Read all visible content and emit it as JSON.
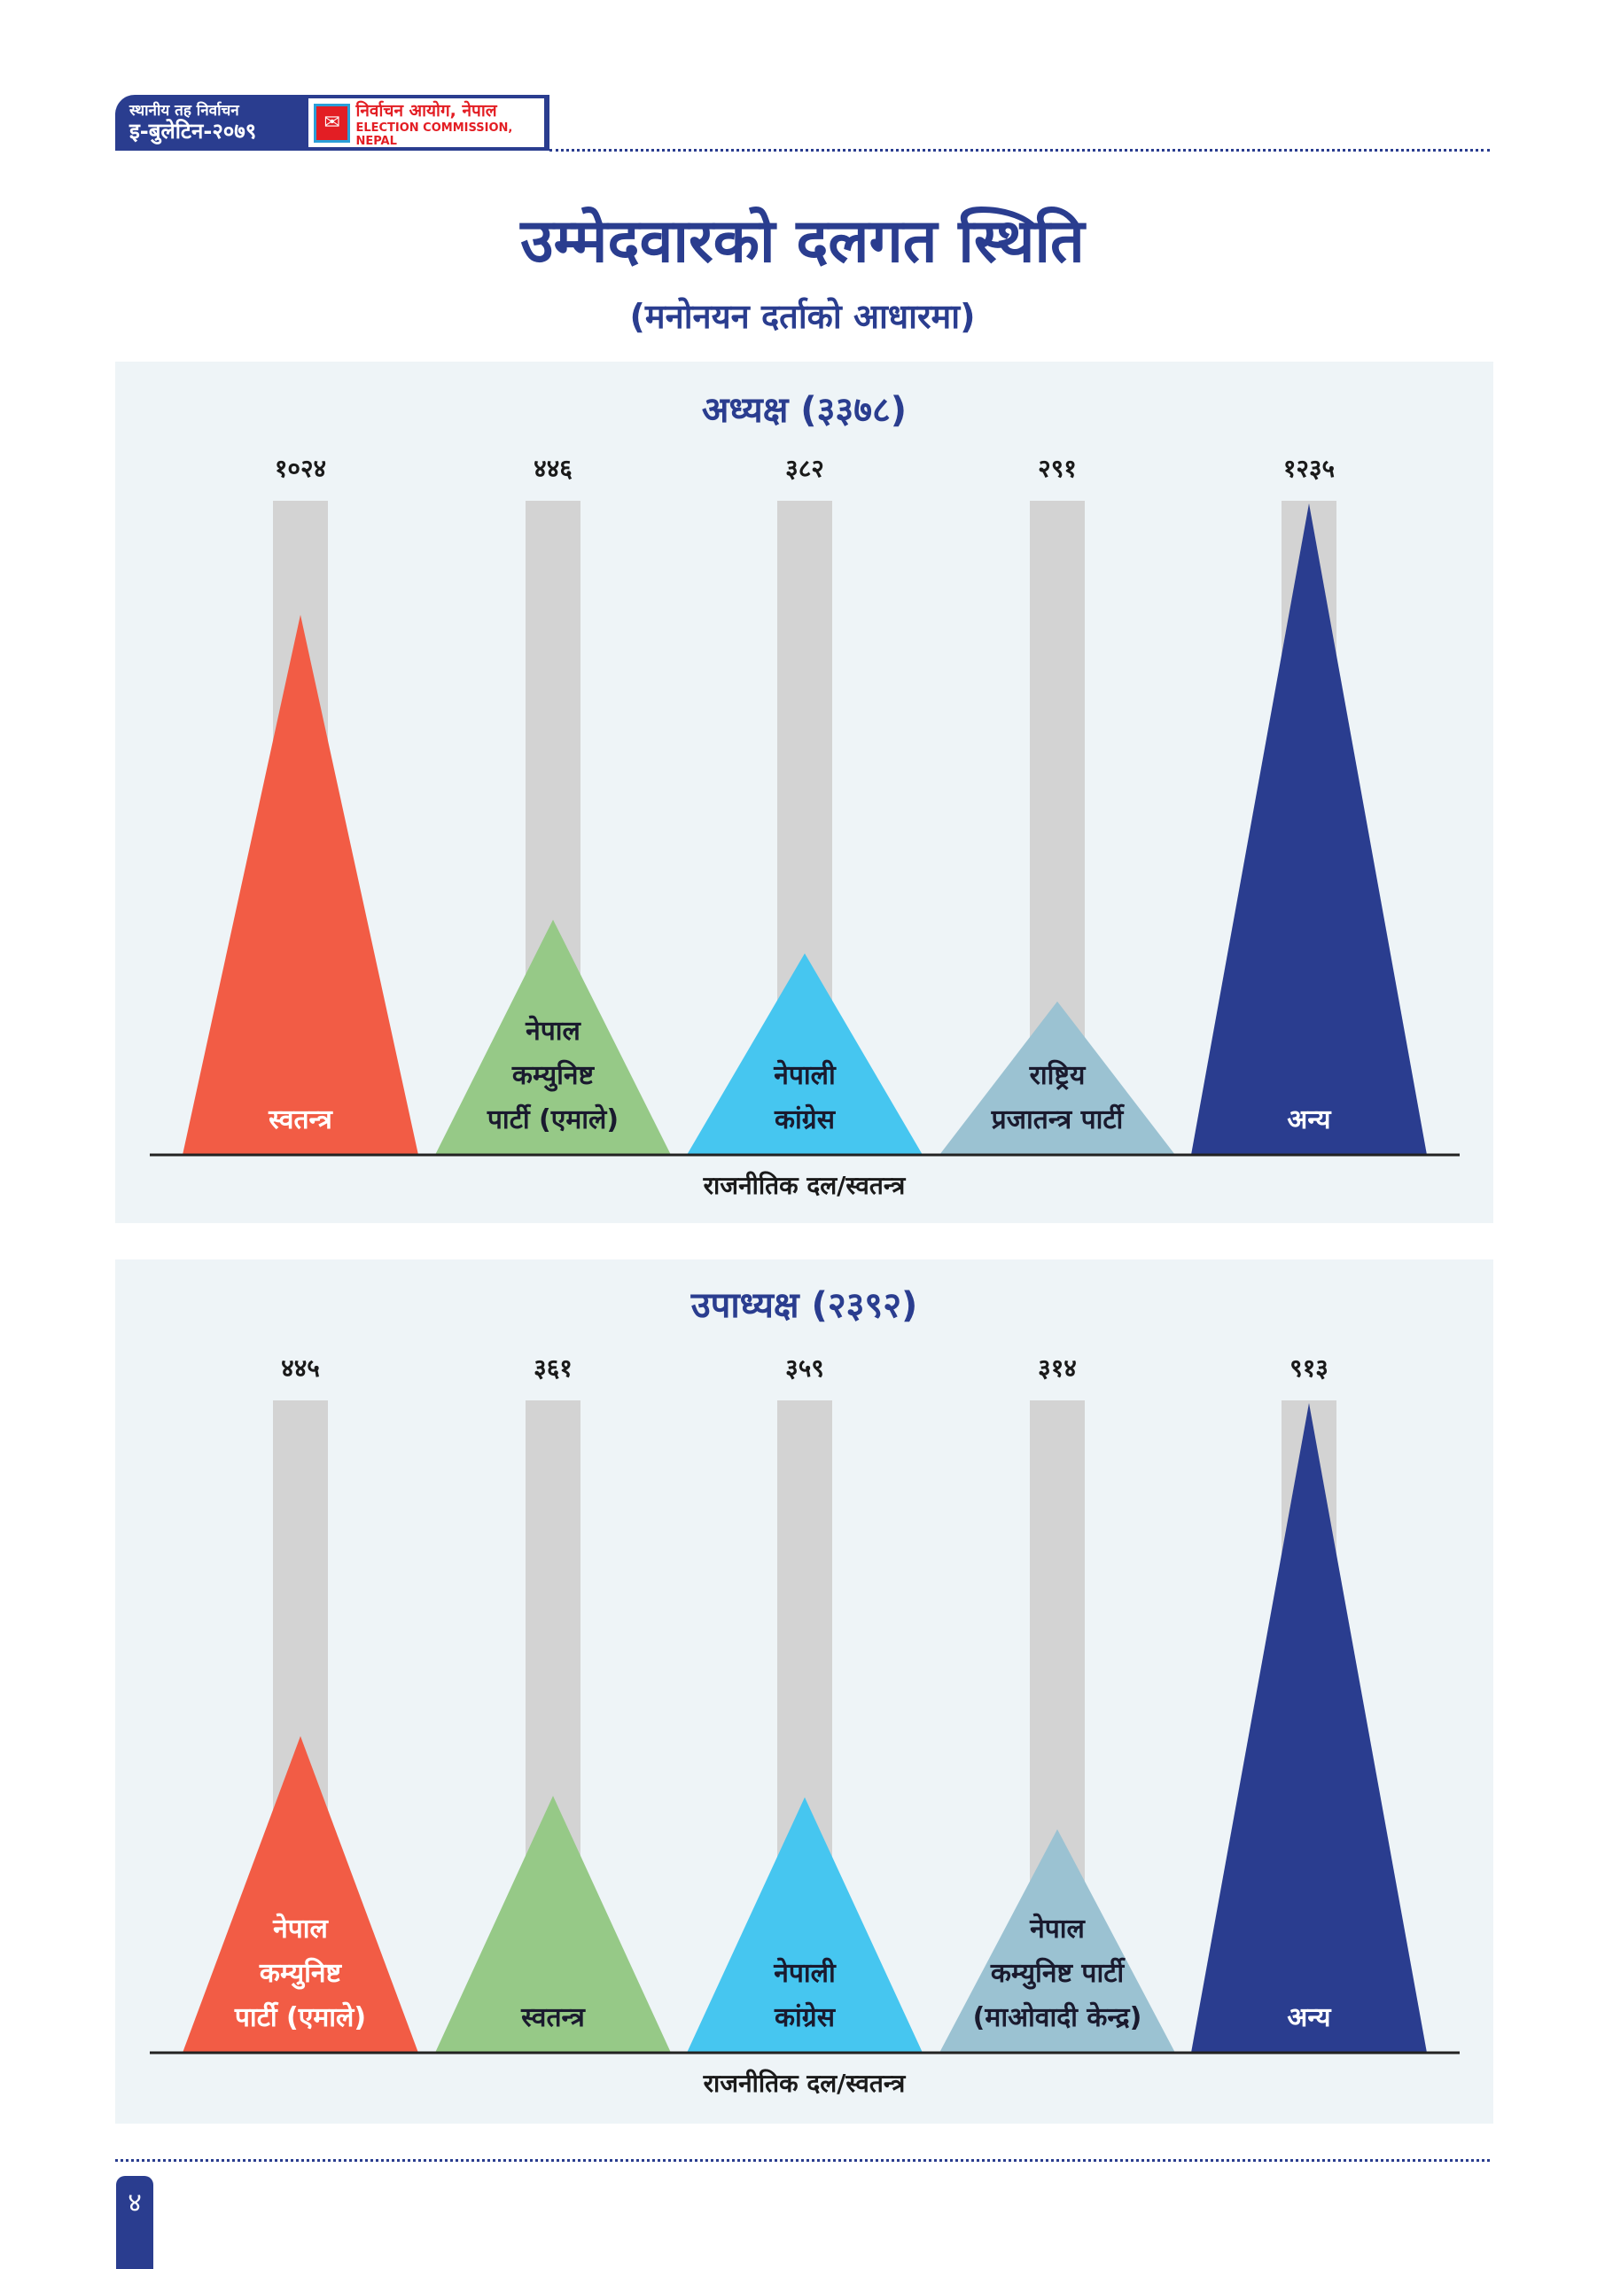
{
  "header": {
    "bulletin_line1": "स्थानीय तह निर्वाचन",
    "bulletin_line2": "इ-बुलेटिन-२०७९",
    "commission_np": "निर्वाचन आयोग, नेपाल",
    "commission_en": "ELECTION COMMISSION, NEPAL"
  },
  "title": "उम्मेदवारको दलगत स्थिति",
  "subtitle": "(मनोनयन दर्ताको आधारमा)",
  "page_number": "४",
  "colors": {
    "red": "#f25c45",
    "green": "#96c987",
    "cyan": "#46c6f0",
    "grayblue": "#9bc2d2",
    "navy": "#2a3d8f",
    "track": "#d3d3d3"
  },
  "chart_data": [
    {
      "type": "bar",
      "title": "अध्यक्ष (३३७८)",
      "xlabel": "राजनीतिक दल/स्वतन्त्र",
      "categories": [
        [
          "स्वतन्त्र"
        ],
        [
          "नेपाल",
          "कम्युनिष्ट",
          "पार्टी (एमाले)"
        ],
        [
          "नेपाली",
          "कांग्रेस"
        ],
        [
          "राष्ट्रिय",
          "प्रजातन्त्र पार्टी"
        ],
        [
          "अन्य"
        ]
      ],
      "values": [
        1024,
        446,
        382,
        291,
        1235
      ],
      "value_labels": [
        "१०२४",
        "४४६",
        "३८२",
        "२९१",
        "१२३५"
      ],
      "bar_colors": [
        "red",
        "green",
        "cyan",
        "grayblue",
        "navy"
      ]
    },
    {
      "type": "bar",
      "title": "उपाध्यक्ष (२३९२)",
      "xlabel": "राजनीतिक दल/स्वतन्त्र",
      "categories": [
        [
          "नेपाल",
          "कम्युनिष्ट",
          "पार्टी (एमाले)"
        ],
        [
          "स्वतन्त्र"
        ],
        [
          "नेपाली",
          "कांग्रेस"
        ],
        [
          "नेपाल",
          "कम्युनिष्ट पार्टी",
          "(माओवादी केन्द्र)"
        ],
        [
          "अन्य"
        ]
      ],
      "values": [
        445,
        361,
        359,
        314,
        913
      ],
      "value_labels": [
        "४४५",
        "३६१",
        "३५९",
        "३१४",
        "९१३"
      ],
      "bar_colors": [
        "red",
        "green",
        "cyan",
        "grayblue",
        "navy"
      ]
    }
  ]
}
